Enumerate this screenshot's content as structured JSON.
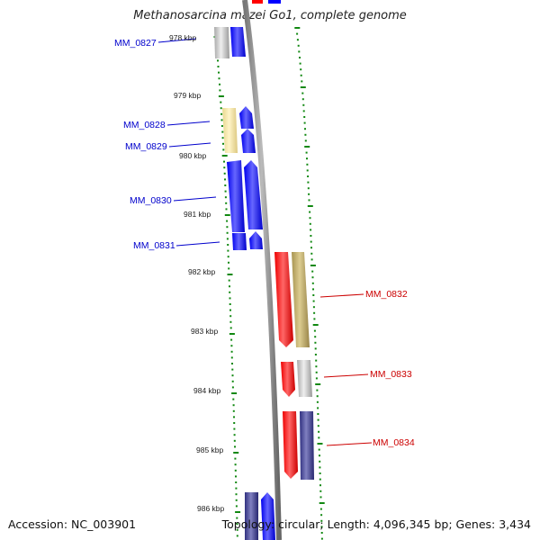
{
  "title": "Methanosarcina mazei Go1, complete genome",
  "accession_label": "Accession: NC_003901",
  "topology_label": "Topology: circular; Length: 4,096,345 bp; Genes: 3,434",
  "colors": {
    "forward_label": "#0000cc",
    "reverse_label": "#cc0000",
    "backbone": "#888888",
    "ticks": "#118811",
    "gene_blue": "#0000ff",
    "gene_red": "#ff0000",
    "gene_gray": "#bbbbbb",
    "gene_yellow": "#f2e2a0",
    "gene_olive": "#b8a860",
    "gene_navy": "#404090"
  },
  "ticks": [
    "978 kbp",
    "979 kbp",
    "980 kbp",
    "981 kbp",
    "982 kbp",
    "983 kbp",
    "984 kbp",
    "985 kbp",
    "986 kbp"
  ],
  "forward_genes": [
    {
      "label": "MM_0827"
    },
    {
      "label": "MM_0828"
    },
    {
      "label": "MM_0829"
    },
    {
      "label": "MM_0830"
    },
    {
      "label": "MM_0831"
    }
  ],
  "reverse_genes": [
    {
      "label": "MM_0832"
    },
    {
      "label": "MM_0833"
    },
    {
      "label": "MM_0834"
    }
  ]
}
